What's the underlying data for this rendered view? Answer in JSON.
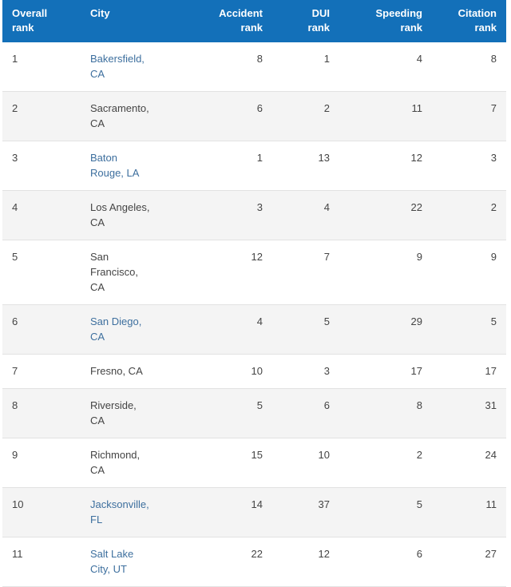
{
  "table": {
    "headers": [
      {
        "line1": "Overall",
        "line2": "rank"
      },
      {
        "line1": "City",
        "line2": ""
      },
      {
        "line1": "Accident",
        "line2": "rank"
      },
      {
        "line1": "DUI",
        "line2": "rank"
      },
      {
        "line1": "Speeding",
        "line2": "rank"
      },
      {
        "line1": "Citation",
        "line2": "rank"
      }
    ],
    "rows": [
      {
        "overall": "1",
        "city": "Bakersfield, CA",
        "linked": true,
        "accident": "8",
        "dui": "1",
        "speeding": "4",
        "citation": "8"
      },
      {
        "overall": "2",
        "city": "Sacramento, CA",
        "linked": false,
        "accident": "6",
        "dui": "2",
        "speeding": "11",
        "citation": "7"
      },
      {
        "overall": "3",
        "city": "Baton Rouge, LA",
        "linked": true,
        "accident": "1",
        "dui": "13",
        "speeding": "12",
        "citation": "3"
      },
      {
        "overall": "4",
        "city": "Los Angeles, CA",
        "linked": false,
        "accident": "3",
        "dui": "4",
        "speeding": "22",
        "citation": "2"
      },
      {
        "overall": "5",
        "city": "San Francisco, CA",
        "linked": false,
        "accident": "12",
        "dui": "7",
        "speeding": "9",
        "citation": "9"
      },
      {
        "overall": "6",
        "city": "San Diego, CA",
        "linked": true,
        "accident": "4",
        "dui": "5",
        "speeding": "29",
        "citation": "5"
      },
      {
        "overall": "7",
        "city": "Fresno, CA",
        "linked": false,
        "accident": "10",
        "dui": "3",
        "speeding": "17",
        "citation": "17"
      },
      {
        "overall": "8",
        "city": "Riverside, CA",
        "linked": false,
        "accident": "5",
        "dui": "6",
        "speeding": "8",
        "citation": "31"
      },
      {
        "overall": "9",
        "city": "Richmond, CA",
        "linked": false,
        "accident": "15",
        "dui": "10",
        "speeding": "2",
        "citation": "24"
      },
      {
        "overall": "10",
        "city": "Jacksonville, FL",
        "linked": true,
        "accident": "14",
        "dui": "37",
        "speeding": "5",
        "citation": "11"
      },
      {
        "overall": "11",
        "city": "Salt Lake City, UT",
        "linked": true,
        "accident": "22",
        "dui": "12",
        "speeding": "6",
        "citation": "27"
      }
    ]
  },
  "colors": {
    "header_bg": "#1370b9",
    "header_text": "#ffffff",
    "link": "#3d6f9e",
    "text": "#444444",
    "row_alt": "#f4f4f4",
    "border": "#e2e2e2"
  }
}
